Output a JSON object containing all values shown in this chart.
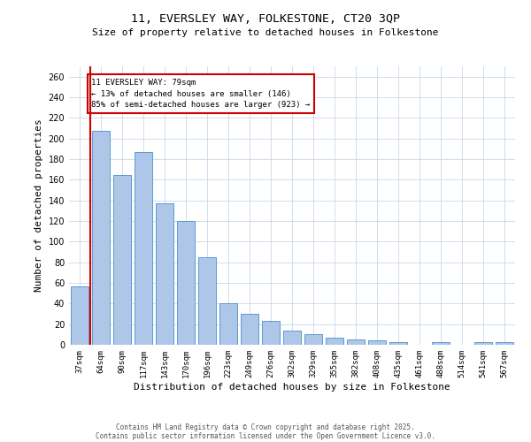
{
  "title_line1": "11, EVERSLEY WAY, FOLKESTONE, CT20 3QP",
  "title_line2": "Size of property relative to detached houses in Folkestone",
  "xlabel": "Distribution of detached houses by size in Folkestone",
  "ylabel": "Number of detached properties",
  "categories": [
    "37sqm",
    "64sqm",
    "90sqm",
    "117sqm",
    "143sqm",
    "170sqm",
    "196sqm",
    "223sqm",
    "249sqm",
    "276sqm",
    "302sqm",
    "329sqm",
    "355sqm",
    "382sqm",
    "408sqm",
    "435sqm",
    "461sqm",
    "488sqm",
    "514sqm",
    "541sqm",
    "567sqm"
  ],
  "values": [
    57,
    207,
    165,
    187,
    137,
    120,
    85,
    40,
    30,
    23,
    14,
    10,
    7,
    5,
    4,
    3,
    0,
    3,
    0,
    3,
    3
  ],
  "bar_color": "#aec6e8",
  "bar_edge_color": "#5b9bd5",
  "vline_x": 0.5,
  "vline_color": "#cc0000",
  "annotation_text": "11 EVERSLEY WAY: 79sqm\n← 13% of detached houses are smaller (146)\n85% of semi-detached houses are larger (923) →",
  "annotation_box_color": "#cc0000",
  "ylim": [
    0,
    270
  ],
  "yticks": [
    0,
    20,
    40,
    60,
    80,
    100,
    120,
    140,
    160,
    180,
    200,
    220,
    240,
    260
  ],
  "footer_line1": "Contains HM Land Registry data © Crown copyright and database right 2025.",
  "footer_line2": "Contains public sector information licensed under the Open Government Licence v3.0.",
  "background_color": "#ffffff",
  "grid_color": "#c8d8e8",
  "fig_width": 6.0,
  "fig_height": 5.0,
  "dpi": 100
}
